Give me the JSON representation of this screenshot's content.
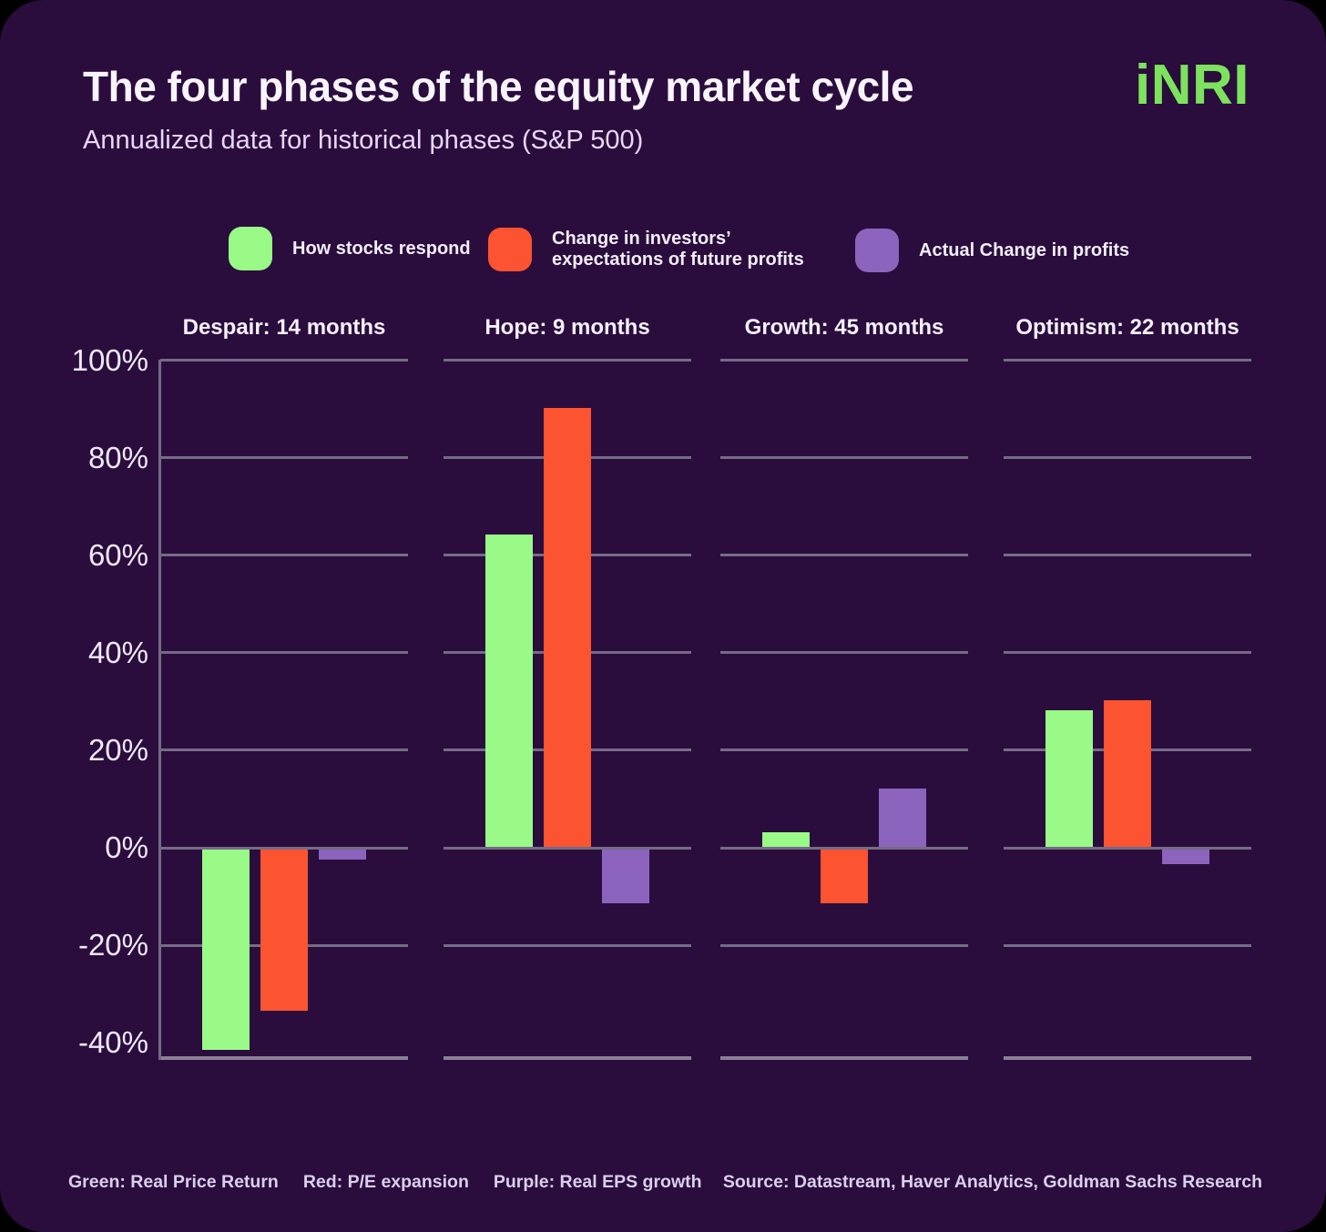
{
  "header": {
    "title": "The four phases of the equity market cycle",
    "subtitle": "Annualized data for historical phases (S&P 500)",
    "logo": "iNRI"
  },
  "legend": {
    "items": [
      {
        "lines": [
          "How stocks respond"
        ],
        "color": "#99fa88"
      },
      {
        "lines": [
          "Change in investors’",
          "expectations of future profits"
        ],
        "color": "#fc5330"
      },
      {
        "lines": [
          "Actual Change in profits"
        ],
        "color": "#8c63bd"
      }
    ]
  },
  "chart_data": {
    "type": "bar",
    "title": "The four phases of the equity market cycle",
    "subtitle": "Annualized data for historical phases (S&P 500)",
    "categories": [
      "Despair: 14 months",
      "Hope: 9 months",
      "Growth: 45 months",
      "Optimism: 22 months"
    ],
    "series": [
      {
        "name": "How stocks respond (Real Price Return)",
        "color": "#99fa88",
        "values": [
          -41,
          64,
          3,
          28
        ]
      },
      {
        "name": "Change in investors’ expectations of future profits (P/E expansion)",
        "color": "#fc5330",
        "values": [
          -33,
          90,
          -11,
          30
        ]
      },
      {
        "name": "Actual Change in profits (Real EPS growth)",
        "color": "#8c63bd",
        "values": [
          -2,
          -11,
          12,
          -3
        ]
      }
    ],
    "yticks": [
      100,
      80,
      60,
      40,
      20,
      0,
      -20,
      -40
    ],
    "gridline_ticks": [
      100,
      80,
      60,
      40,
      20,
      0,
      -20
    ],
    "ytick_suffix": "%",
    "ylim": [
      -43,
      100
    ],
    "grid": true,
    "legend_position": "top"
  },
  "footnotes": {
    "green": "Green: Real Price Return",
    "red": "Red: P/E expansion",
    "purple": "Purple: Real EPS growth"
  },
  "source": "Source: Datastream, Haver Analytics, Goldman Sachs Research",
  "colors": {
    "page_background": "#000000",
    "card_background": "#2a0d3d",
    "logo_green": "#7de25d",
    "bar_green": "#99fa88",
    "bar_red": "#fc5330",
    "bar_purple": "#8c63bd",
    "gridline": "#756b85",
    "axis_line": "#8a8197",
    "title_text": "#f8f4fc",
    "subtitle_text": "#e8d7f7",
    "footer_text": "#dbcfec"
  }
}
